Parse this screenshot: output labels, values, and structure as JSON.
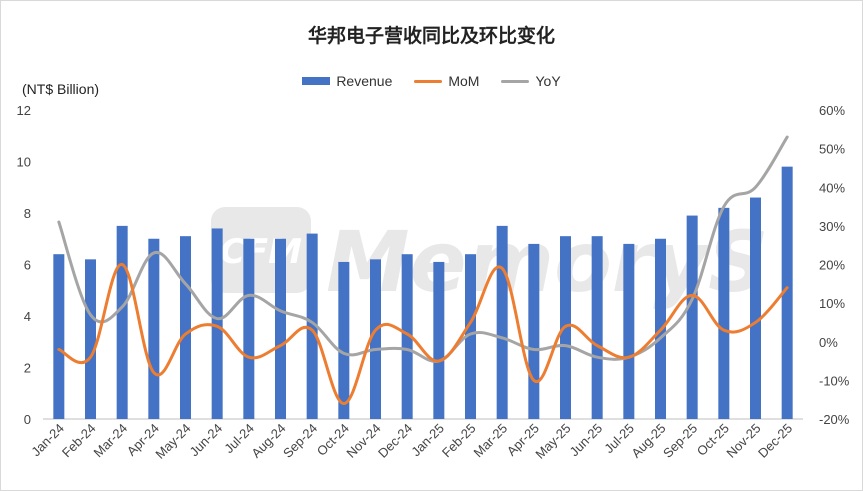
{
  "chart_data": {
    "type": "bar",
    "title": "华邦电子营收同比及环比变化",
    "ylabel": "(NT$ Billion)",
    "categories": [
      "Jan-24",
      "Feb-24",
      "Mar-24",
      "Apr-24",
      "May-24",
      "Jun-24",
      "Jul-24",
      "Aug-24",
      "Sep-24",
      "Oct-24",
      "Nov-24",
      "Dec-24",
      "Jan-25",
      "Feb-25",
      "Mar-25",
      "Apr-25",
      "May-25",
      "Jun-25",
      "Jul-25",
      "Aug-25",
      "Sep-25",
      "Oct-25",
      "Nov-25",
      "Dec-25"
    ],
    "series": [
      {
        "name": "Revenue",
        "type": "bar",
        "axis": "left",
        "color": "#4472c4",
        "values": [
          6.4,
          6.2,
          7.5,
          7.0,
          7.1,
          7.4,
          7.0,
          7.0,
          7.2,
          6.1,
          6.2,
          6.4,
          6.1,
          6.4,
          7.5,
          6.8,
          7.1,
          7.1,
          6.8,
          7.0,
          7.9,
          8.2,
          8.6,
          9.8
        ]
      },
      {
        "name": "MoM",
        "type": "line",
        "axis": "right",
        "color": "#ed7d31",
        "values": [
          -2,
          -4,
          20,
          -8,
          2,
          4,
          -4,
          -1,
          3,
          -16,
          3,
          2,
          -5,
          5,
          19,
          -10,
          4,
          -1,
          -4,
          3,
          12,
          3,
          5,
          14
        ]
      },
      {
        "name": "YoY",
        "type": "line",
        "axis": "right",
        "color": "#a5a5a5",
        "values": [
          31,
          7,
          9,
          23,
          15,
          6,
          12,
          8,
          5,
          -3,
          -2,
          -2,
          -5,
          2,
          1,
          -2,
          -1,
          -4,
          -4,
          1,
          11,
          35,
          40,
          53
        ]
      }
    ],
    "ylim": [
      0,
      12
    ],
    "yticks": [
      "0",
      "2",
      "4",
      "6",
      "8",
      "10",
      "12"
    ],
    "y2lim": [
      -20,
      60
    ],
    "y2ticks": [
      "-20%",
      "-10%",
      "0%",
      "10%",
      "20%",
      "30%",
      "40%",
      "50%",
      "60%"
    ],
    "legend": "top-center",
    "grid": false,
    "watermark": "CFM MemoryS"
  }
}
